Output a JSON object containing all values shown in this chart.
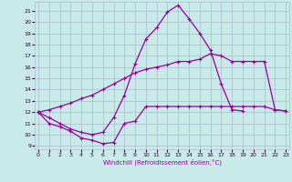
{
  "bg_color": "#c8eae8",
  "grid_color": "#aabbcc",
  "line_color": "#990099",
  "xlim": [
    -0.3,
    23.3
  ],
  "ylim": [
    8.7,
    21.8
  ],
  "yticks": [
    9,
    10,
    11,
    12,
    13,
    14,
    15,
    16,
    17,
    18,
    19,
    20,
    21
  ],
  "xticks": [
    0,
    1,
    2,
    3,
    4,
    5,
    6,
    7,
    8,
    9,
    10,
    11,
    12,
    13,
    14,
    15,
    16,
    17,
    18,
    19,
    20,
    21,
    22,
    23
  ],
  "xlabel": "Windchill (Refroidissement éolien,°C)",
  "series": [
    {
      "x": [
        0,
        1,
        2,
        3,
        4,
        5,
        6,
        7,
        8,
        9,
        10,
        11,
        12,
        13,
        14,
        15,
        16,
        17,
        18,
        19,
        20,
        21,
        22,
        23
      ],
      "y": [
        12,
        11,
        10.7,
        10.3,
        9.7,
        9.5,
        9.2,
        9.3,
        11,
        11.2,
        12.5,
        12.5,
        12.5,
        12.5,
        12.5,
        12.5,
        12.5,
        12.5,
        12.5,
        12.5,
        12.5,
        12.5,
        12.2,
        12.1
      ]
    },
    {
      "x": [
        0,
        1,
        2,
        3,
        4,
        5,
        6,
        7,
        8,
        9,
        10,
        11,
        12,
        13,
        14,
        15,
        16,
        17,
        18,
        19,
        20,
        21,
        22
      ],
      "y": [
        12,
        11.5,
        11,
        10.5,
        10.2,
        10.0,
        10.2,
        11.5,
        13.5,
        16.3,
        18.5,
        19.5,
        20.9,
        21.5,
        20.3,
        19.0,
        17.5,
        14.5,
        12.2,
        12.1,
        null,
        null,
        null
      ]
    },
    {
      "x": [
        0,
        1,
        2,
        3,
        4,
        5,
        6,
        7,
        8,
        9,
        10,
        11,
        12,
        13,
        14,
        15,
        16,
        17,
        18,
        19,
        20,
        21,
        22,
        23
      ],
      "y": [
        12,
        12.2,
        12.5,
        12.8,
        13.2,
        13.5,
        14.0,
        14.5,
        15.0,
        15.5,
        15.8,
        16.0,
        16.2,
        16.5,
        16.5,
        16.7,
        17.2,
        17.0,
        16.5,
        16.5,
        16.5,
        16.5,
        12.2,
        12.1
      ]
    }
  ]
}
